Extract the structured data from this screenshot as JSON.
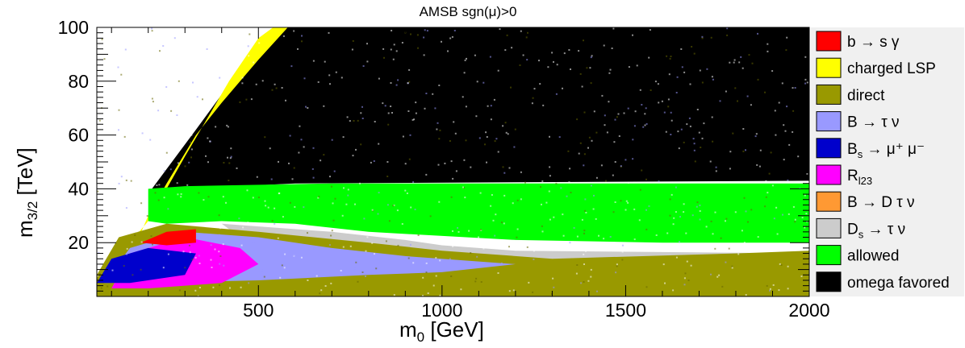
{
  "chart_data": {
    "type": "scatter",
    "title": "AMSB    sgn(μ)>0",
    "xlabel": "m",
    "xlabel_sub": "0",
    "xlabel_unit": " [GeV]",
    "ylabel": "m",
    "ylabel_sub": "3/2",
    "ylabel_unit": " [TeV]",
    "xlim": [
      60,
      2000
    ],
    "ylim": [
      0,
      100
    ],
    "xticks": [
      500,
      1000,
      1500,
      2000
    ],
    "xtick_labels": [
      "500",
      "1000",
      "1500",
      "2000"
    ],
    "yticks": [
      20,
      40,
      60,
      80,
      100
    ],
    "ytick_labels": [
      "20",
      "40",
      "60",
      "80",
      "100"
    ],
    "legend_position": "right",
    "regions": [
      {
        "name": "omega favored",
        "color": "#000000",
        "polygon": [
          [
            210,
            40
          ],
          [
            330,
            62
          ],
          [
            480,
            90
          ],
          [
            580,
            100
          ],
          [
            2000,
            100
          ],
          [
            2000,
            43
          ],
          [
            600,
            42
          ],
          [
            300,
            40
          ]
        ]
      },
      {
        "name": "charged LSP",
        "color": "#ffff00",
        "polygon": [
          [
            150,
            20
          ],
          [
            200,
            28
          ],
          [
            300,
            52
          ],
          [
            420,
            80
          ],
          [
            500,
            96
          ],
          [
            540,
            100
          ],
          [
            580,
            100
          ],
          [
            500,
            88
          ],
          [
            400,
            72
          ],
          [
            330,
            60
          ],
          [
            250,
            42
          ],
          [
            200,
            30
          ],
          [
            175,
            22
          ]
        ]
      },
      {
        "name": "allowed",
        "color": "#00ff00",
        "polygon": [
          [
            200,
            28
          ],
          [
            200,
            40
          ],
          [
            300,
            41
          ],
          [
            700,
            42
          ],
          [
            1500,
            42
          ],
          [
            2000,
            42
          ],
          [
            2000,
            20
          ],
          [
            1600,
            20
          ],
          [
            1200,
            21
          ],
          [
            800,
            24
          ],
          [
            600,
            27
          ],
          [
            400,
            28
          ],
          [
            250,
            27
          ]
        ]
      },
      {
        "name": "D_s → τ ν",
        "color": "#cccccc",
        "polygon": [
          [
            400,
            27
          ],
          [
            700,
            24
          ],
          [
            900,
            21
          ],
          [
            1000,
            19
          ],
          [
            1200,
            17
          ],
          [
            2000,
            16
          ],
          [
            2000,
            12
          ],
          [
            1200,
            14
          ],
          [
            900,
            17
          ],
          [
            700,
            20
          ],
          [
            450,
            22
          ]
        ]
      },
      {
        "name": "direct",
        "color": "#999900",
        "polygon": [
          [
            60,
            0
          ],
          [
            60,
            8
          ],
          [
            120,
            22
          ],
          [
            250,
            27
          ],
          [
            500,
            24
          ],
          [
            800,
            20
          ],
          [
            1000,
            17
          ],
          [
            1300,
            14
          ],
          [
            1800,
            16
          ],
          [
            2000,
            17
          ],
          [
            2000,
            0
          ]
        ]
      },
      {
        "name": "B → τ ν",
        "color": "#9999ff",
        "polygon": [
          [
            80,
            5
          ],
          [
            150,
            18
          ],
          [
            300,
            24
          ],
          [
            500,
            22
          ],
          [
            700,
            18
          ],
          [
            900,
            15
          ],
          [
            1100,
            13
          ],
          [
            1200,
            12
          ],
          [
            1000,
            9
          ],
          [
            800,
            8
          ],
          [
            500,
            6
          ],
          [
            200,
            5
          ]
        ]
      },
      {
        "name": "R_l23",
        "color": "#ff00ff",
        "polygon": [
          [
            100,
            3
          ],
          [
            150,
            16
          ],
          [
            300,
            22
          ],
          [
            450,
            18
          ],
          [
            500,
            12
          ],
          [
            400,
            5
          ],
          [
            200,
            3
          ]
        ]
      },
      {
        "name": "B_s → μ⁺ μ⁻",
        "color": "#0000cc",
        "polygon": [
          [
            60,
            5
          ],
          [
            100,
            14
          ],
          [
            200,
            18
          ],
          [
            330,
            16
          ],
          [
            300,
            8
          ],
          [
            150,
            5
          ]
        ]
      },
      {
        "name": "b → s γ",
        "color": "#ff0000",
        "polygon": [
          [
            180,
            20
          ],
          [
            250,
            24
          ],
          [
            330,
            25
          ],
          [
            330,
            20
          ],
          [
            250,
            19
          ]
        ]
      }
    ],
    "legend": [
      {
        "main": "b → s γ",
        "sub": "",
        "rest": "",
        "color": "#ff0000"
      },
      {
        "main": "charged LSP",
        "sub": "",
        "rest": "",
        "color": "#ffff00"
      },
      {
        "main": "direct",
        "sub": "",
        "rest": "",
        "color": "#999900"
      },
      {
        "main": "B → τ ν",
        "sub": "",
        "rest": "",
        "color": "#9999ff"
      },
      {
        "main": "B",
        "sub": "s",
        "rest": " → μ⁺ μ⁻",
        "color": "#0000cc"
      },
      {
        "main": "R",
        "sub": "l23",
        "rest": "",
        "color": "#ff00ff"
      },
      {
        "main": "B → D τ ν",
        "sub": "",
        "rest": "",
        "color": "#ff9933"
      },
      {
        "main": "D",
        "sub": "s",
        "rest": " → τ ν",
        "color": "#cccccc"
      },
      {
        "main": "allowed",
        "sub": "",
        "rest": "",
        "color": "#00ff00"
      },
      {
        "main": "omega favored",
        "sub": "",
        "rest": "",
        "color": "#000000"
      }
    ]
  }
}
